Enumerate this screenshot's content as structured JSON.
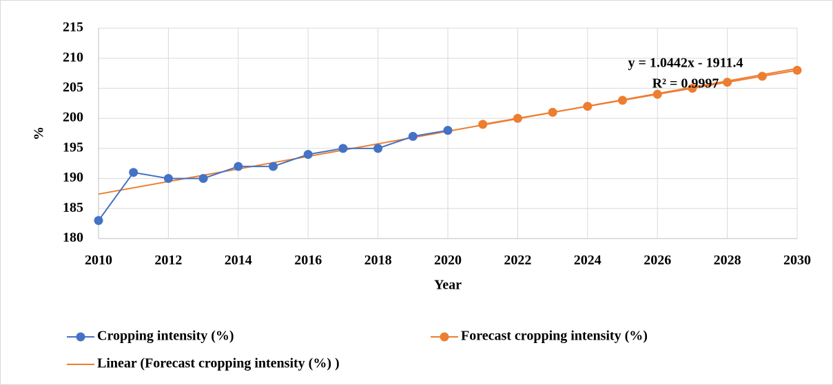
{
  "chart_data": {
    "type": "line",
    "x_label": "Year",
    "y_label": "%",
    "annotations": [
      "y = 1.0442x - 1911.4",
      "R² = 0.9997"
    ],
    "xlim": [
      2010,
      2030
    ],
    "xticks": [
      2010,
      2012,
      2014,
      2016,
      2018,
      2020,
      2022,
      2024,
      2026,
      2028,
      2030
    ],
    "ylim": [
      180,
      215
    ],
    "yticks": [
      180,
      185,
      190,
      195,
      200,
      205,
      210,
      215
    ],
    "grid": true,
    "legend": "bottom",
    "series": [
      {
        "name": "Cropping intensity (%)",
        "color": "#4472c4",
        "marker": true,
        "x": [
          2010,
          2011,
          2012,
          2013,
          2014,
          2015,
          2016,
          2017,
          2018,
          2019,
          2020
        ],
        "values": [
          183,
          191,
          190,
          190,
          192,
          192,
          194,
          195,
          195,
          197,
          198
        ]
      },
      {
        "name": "Forecast cropping intensity (%)",
        "color": "#ed7d31",
        "marker": true,
        "x": [
          2021,
          2022,
          2023,
          2024,
          2025,
          2026,
          2027,
          2028,
          2029,
          2030
        ],
        "values": [
          199,
          200,
          201,
          202,
          203,
          204,
          205,
          206,
          207,
          208
        ]
      },
      {
        "name": "Linear (Forecast cropping intensity (%) )",
        "color": "#ed7d31",
        "marker": false,
        "x": [
          2010,
          2030
        ],
        "values": [
          187.4,
          208.3
        ]
      }
    ]
  }
}
